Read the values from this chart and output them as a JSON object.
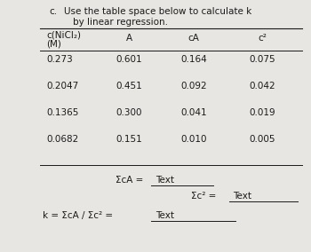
{
  "title_prefix": "c.",
  "title_line1": "Use the table space below to calculate k",
  "title_line2": "by linear regression.",
  "col1_header_line1": "c(NiCl₂)",
  "col1_header_line2": "(M)",
  "col2_header": "A",
  "col3_header": "cA",
  "col4_header": "c²",
  "rows": [
    [
      "0.273",
      "0.601",
      "0.164",
      "0.075"
    ],
    [
      "0.2047",
      "0.451",
      "0.092",
      "0.042"
    ],
    [
      "0.1365",
      "0.300",
      "0.041",
      "0.019"
    ],
    [
      "0.0682",
      "0.151",
      "0.010",
      "0.005"
    ]
  ],
  "sum_ca_label": "ΣcA = ",
  "sum_ca_value": "Text",
  "sum_c2_label": "Σc² = ",
  "sum_c2_value": "Text",
  "k_label": "k = ΣcA / Σc² = ",
  "k_value": "Text",
  "bg_color": "#e8e6e2",
  "text_color": "#1a1a1a",
  "font_size": 7.5,
  "header_font_size": 7.5
}
